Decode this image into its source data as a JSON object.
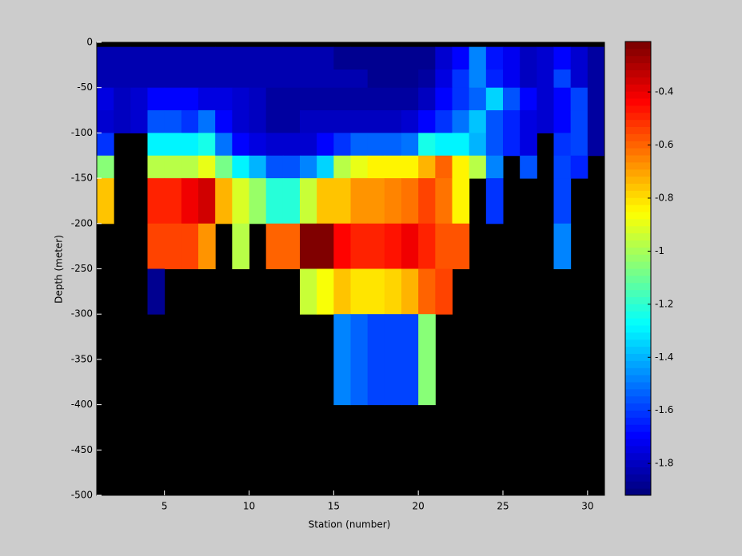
{
  "chart_data": {
    "type": "heatmap",
    "x_label": "Station (number)",
    "y_label": "Depth (meter)",
    "x_edges": [
      1,
      2,
      3,
      4,
      5,
      6,
      7,
      8,
      9,
      10,
      11,
      12,
      13,
      14,
      15,
      16,
      17,
      18,
      19,
      20,
      21,
      22,
      23,
      24,
      25,
      26,
      27,
      28,
      29,
      30,
      31
    ],
    "y_edges": [
      0,
      -5,
      -30,
      -50,
      -75,
      -100,
      -125,
      -150,
      -200,
      -250,
      -300,
      -400,
      -500
    ],
    "z": [
      [
        null,
        null,
        null,
        null,
        null,
        null,
        null,
        null,
        null,
        null,
        null,
        null,
        null,
        null,
        null,
        null,
        null,
        null,
        null,
        null,
        null,
        null,
        null,
        null,
        null,
        null,
        null,
        null,
        null,
        null
      ],
      [
        -1.82,
        -1.82,
        -1.82,
        -1.82,
        -1.82,
        -1.82,
        -1.82,
        -1.82,
        -1.82,
        -1.82,
        -1.82,
        -1.82,
        -1.82,
        -1.82,
        -1.87,
        -1.87,
        -1.87,
        -1.87,
        -1.87,
        -1.87,
        -1.78,
        -1.68,
        -1.47,
        -1.66,
        -1.72,
        -1.8,
        -1.77,
        -1.7,
        -1.77,
        -1.85
      ],
      [
        -1.82,
        -1.82,
        -1.82,
        -1.82,
        -1.82,
        -1.82,
        -1.82,
        -1.82,
        -1.82,
        -1.82,
        -1.82,
        -1.82,
        -1.82,
        -1.82,
        -1.82,
        -1.82,
        -1.87,
        -1.87,
        -1.87,
        -1.84,
        -1.75,
        -1.62,
        -1.47,
        -1.63,
        -1.72,
        -1.8,
        -1.77,
        -1.58,
        -1.77,
        -1.85
      ],
      [
        -1.75,
        -1.8,
        -1.77,
        -1.7,
        -1.7,
        -1.68,
        -1.74,
        -1.74,
        -1.78,
        -1.8,
        -1.84,
        -1.84,
        -1.84,
        -1.84,
        -1.84,
        -1.84,
        -1.84,
        -1.84,
        -1.84,
        -1.8,
        -1.7,
        -1.6,
        -1.52,
        -1.35,
        -1.55,
        -1.7,
        -1.76,
        -1.7,
        -1.58,
        -1.85
      ],
      [
        -1.77,
        -1.8,
        -1.77,
        -1.55,
        -1.55,
        -1.6,
        -1.5,
        -1.68,
        -1.78,
        -1.8,
        -1.84,
        -1.84,
        -1.8,
        -1.8,
        -1.8,
        -1.8,
        -1.8,
        -1.8,
        -1.77,
        -1.7,
        -1.62,
        -1.5,
        -1.37,
        -1.55,
        -1.65,
        -1.74,
        -1.78,
        -1.68,
        -1.58,
        -1.85
      ],
      [
        -1.62,
        null,
        null,
        -1.3,
        -1.3,
        -1.3,
        -1.25,
        -1.5,
        -1.7,
        -1.75,
        -1.78,
        -1.78,
        -1.78,
        -1.7,
        -1.6,
        -1.52,
        -1.52,
        -1.52,
        -1.5,
        -1.25,
        -1.3,
        -1.3,
        -1.4,
        -1.55,
        -1.65,
        -1.75,
        null,
        -1.6,
        -1.58,
        -1.85
      ],
      [
        -1.05,
        null,
        null,
        -0.97,
        -0.97,
        -0.97,
        -0.9,
        -1.08,
        -1.3,
        -1.4,
        -1.55,
        -1.55,
        -1.48,
        -1.35,
        -0.97,
        -0.9,
        -0.85,
        -0.85,
        -0.85,
        -0.72,
        -0.6,
        -0.85,
        -0.97,
        -1.48,
        null,
        -1.55,
        null,
        -1.58,
        -1.65,
        null
      ],
      [
        -0.75,
        null,
        null,
        -0.48,
        -0.48,
        -0.42,
        -0.35,
        -0.72,
        -0.92,
        -1.02,
        -1.22,
        -1.22,
        -0.95,
        -0.75,
        -0.75,
        -0.68,
        -0.68,
        -0.65,
        -0.62,
        -0.55,
        -0.62,
        -0.85,
        null,
        -1.6,
        null,
        null,
        null,
        -1.58,
        null,
        null
      ],
      [
        null,
        null,
        null,
        -0.55,
        -0.55,
        -0.55,
        -0.67,
        null,
        -0.98,
        null,
        -0.6,
        -0.6,
        -0.22,
        -0.22,
        -0.45,
        -0.5,
        -0.5,
        -0.47,
        -0.4,
        -0.48,
        -0.58,
        -0.58,
        null,
        null,
        null,
        null,
        null,
        -1.48,
        null,
        null
      ],
      [
        null,
        null,
        null,
        -1.88,
        null,
        null,
        null,
        null,
        null,
        null,
        null,
        null,
        -0.95,
        -0.87,
        -0.75,
        -0.8,
        -0.82,
        -0.78,
        -0.72,
        -0.6,
        -0.55,
        null,
        null,
        null,
        null,
        null,
        null,
        null,
        null,
        null
      ],
      [
        null,
        null,
        null,
        null,
        null,
        null,
        null,
        null,
        null,
        null,
        null,
        null,
        null,
        null,
        -1.47,
        -1.53,
        -1.58,
        -1.58,
        -1.58,
        -1.05,
        null,
        null,
        null,
        null,
        null,
        null,
        null,
        null,
        null,
        null
      ],
      [
        null,
        null,
        null,
        null,
        null,
        null,
        null,
        null,
        null,
        null,
        null,
        null,
        null,
        null,
        null,
        null,
        null,
        null,
        null,
        null,
        null,
        null,
        null,
        null,
        null,
        null,
        null,
        null,
        null,
        null
      ]
    ],
    "xlim": [
      1,
      31
    ],
    "ylim": [
      -500,
      0
    ],
    "xticks": [
      5,
      10,
      15,
      20,
      25,
      30
    ],
    "yticks": [
      0,
      -50,
      -100,
      -150,
      -200,
      -250,
      -300,
      -350,
      -400,
      -450,
      -500
    ],
    "colormap": "jet",
    "color_levels": 64,
    "clim": [
      -1.92,
      -0.21
    ],
    "colorbar_ticks": [
      -0.4,
      -0.6,
      -0.8,
      -1,
      -1.2,
      -1.4,
      -1.6,
      -1.8
    ],
    "missing_color": "#000000"
  }
}
